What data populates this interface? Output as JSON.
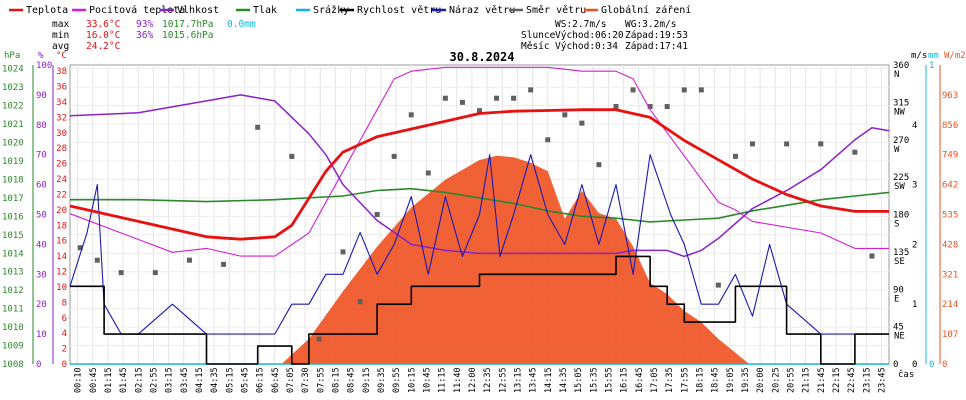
{
  "legend": [
    {
      "label": "Teplota",
      "color": "#e81010"
    },
    {
      "label": "Pocitová teplota",
      "color": "#d020d0"
    },
    {
      "label": "Vlhkost",
      "color": "#8a22c8"
    },
    {
      "label": "Tlak",
      "color": "#2a8a2a"
    },
    {
      "label": "Srážky",
      "color": "#10b8d8"
    },
    {
      "label": "Rychlost větru",
      "color": "#000000"
    },
    {
      "label": "Náraz větru",
      "color": "#1a1ab0"
    },
    {
      "label": "Směr větru",
      "color": "#606060"
    },
    {
      "label": "Globální záření",
      "color": "#f05020"
    }
  ],
  "stats": {
    "max_label": "max",
    "max_temp": "33.6°C",
    "max_hum": "93%",
    "max_press": "1017.7hPa",
    "max_rain": "0.0mm",
    "min_label": "min",
    "min_temp": "16.0°C",
    "min_hum": "36%",
    "min_press": "1015.6hPa",
    "avg_label": "avg",
    "avg_temp": "24.2°C"
  },
  "wind_info": {
    "ws": "WS:2.7m/s",
    "wg": "WG:3.2m/s"
  },
  "sun": {
    "label": "Slunce",
    "rise": "Východ:06:20",
    "set": "Západ:19:53"
  },
  "moon": {
    "label": "Měsíc",
    "rise": "Východ:0:34",
    "set": "Západ:17:41"
  },
  "axis_units": {
    "hpa": "hPa",
    "pct": "%",
    "degc": "°C",
    "ms": "m/s",
    "mm": "mm",
    "wm2": "W/m2",
    "time": "čas"
  },
  "chart_data": {
    "type": "line",
    "title": "30.8.2024",
    "pressure_ticks": [
      1024,
      1023,
      1022,
      1021,
      1020,
      1019,
      1018,
      1017,
      1016,
      1015,
      1014,
      1013,
      1012,
      1011,
      1010,
      1009,
      1008
    ],
    "humidity_ticks": [
      100,
      90,
      80,
      70,
      60,
      50,
      40,
      30,
      20,
      10,
      0
    ],
    "temp_ticks": [
      38,
      36,
      34,
      32,
      30,
      28,
      26,
      24,
      22,
      20,
      18,
      16,
      14,
      12,
      10,
      8,
      6,
      4,
      2,
      0
    ],
    "direction_ticks": [
      {
        "deg": 360,
        "label": "N"
      },
      {
        "deg": 315,
        "label": "NW"
      },
      {
        "deg": 270,
        "label": "W"
      },
      {
        "deg": 225,
        "label": "SW"
      },
      {
        "deg": 180,
        "label": "S"
      },
      {
        "deg": 135,
        "label": "SE"
      },
      {
        "deg": 90,
        "label": "E"
      },
      {
        "deg": 45,
        "label": "NE"
      },
      {
        "deg": 0,
        "label": ""
      }
    ],
    "wind_ticks": [
      4,
      3,
      2,
      1,
      0
    ],
    "rain_ticks": [
      1,
      0
    ],
    "radiation_ticks": [
      963,
      856,
      749,
      642,
      535,
      428,
      321,
      214,
      107,
      0
    ],
    "time_labels": [
      "00:10",
      "00:45",
      "01:15",
      "01:45",
      "02:15",
      "02:55",
      "03:15",
      "03:45",
      "04:15",
      "04:35",
      "05:15",
      "05:45",
      "06:15",
      "06:45",
      "07:05",
      "07:30",
      "07:55",
      "08:15",
      "08:45",
      "09:15",
      "09:35",
      "09:55",
      "10:15",
      "10:45",
      "11:15",
      "11:40",
      "12:00",
      "12:35",
      "12:55",
      "13:15",
      "13:45",
      "14:15",
      "14:35",
      "15:05",
      "15:35",
      "15:55",
      "16:15",
      "16:45",
      "17:05",
      "17:35",
      "17:55",
      "18:15",
      "18:45",
      "19:05",
      "19:35",
      "20:00",
      "20:25",
      "20:55",
      "21:15",
      "21:45",
      "22:15",
      "22:45",
      "23:15",
      "23:45"
    ],
    "series": [
      {
        "name": "Teplota",
        "unit": "°C",
        "color": "#e81010",
        "x_hours": [
          0,
          2,
          4,
          5,
          6,
          6.5,
          7,
          7.5,
          8,
          9,
          10,
          11,
          12,
          13,
          14,
          15,
          16,
          17,
          18,
          19,
          20,
          21,
          22,
          23,
          24
        ],
        "values": [
          20.5,
          18.5,
          16.5,
          16.2,
          16.5,
          18,
          21.5,
          25,
          27.5,
          29.5,
          30.5,
          31.5,
          32.5,
          32.8,
          32.9,
          33,
          33,
          32,
          29,
          26.5,
          24,
          22,
          20.5,
          19.8,
          19.8
        ]
      },
      {
        "name": "Pocitová teplota",
        "unit": "°C",
        "color": "#d020d0",
        "x_hours": [
          0,
          1.5,
          3,
          4,
          5,
          6,
          7,
          7.5,
          8,
          9,
          9.5,
          10,
          11,
          12,
          13,
          14,
          15,
          16,
          16.5,
          17,
          17.5,
          18,
          18.5,
          19,
          19.5,
          20,
          22,
          23,
          24
        ],
        "values": [
          19.5,
          17,
          14.5,
          15,
          14,
          14,
          17,
          21,
          25,
          33,
          37,
          38,
          38.5,
          38.5,
          38.5,
          38.5,
          38,
          38,
          37,
          33,
          30,
          27,
          24,
          21,
          20,
          18.5,
          17,
          15,
          15
        ]
      },
      {
        "name": "Vlhkost",
        "unit": "%",
        "color": "#8a22c8",
        "x_hours": [
          0,
          2,
          4,
          5,
          6,
          7,
          7.5,
          8,
          9,
          9.5,
          10,
          11,
          12,
          13,
          14,
          15,
          16,
          16.5,
          17,
          17.5,
          18,
          18.5,
          19,
          20,
          21,
          22,
          23,
          23.5,
          24
        ],
        "values": [
          83,
          84,
          88,
          90,
          88,
          77,
          70,
          60,
          48,
          44,
          40,
          38,
          37,
          37,
          37,
          37,
          37,
          38,
          38,
          38,
          36,
          38,
          42,
          52,
          58,
          65,
          75,
          79,
          78
        ]
      },
      {
        "name": "Tlak",
        "unit": "hPa",
        "color": "#2a8a2a",
        "x_hours": [
          0,
          2,
          4,
          6,
          8,
          9,
          10,
          11,
          12,
          13,
          14,
          15,
          16,
          17,
          18,
          19,
          20,
          21,
          22,
          23,
          24
        ],
        "values": [
          1016.9,
          1016.9,
          1016.8,
          1016.9,
          1017.1,
          1017.4,
          1017.5,
          1017.3,
          1017.0,
          1016.7,
          1016.3,
          1016.0,
          1015.9,
          1015.7,
          1015.8,
          1015.9,
          1016.3,
          1016.6,
          1016.9,
          1017.1,
          1017.3
        ]
      },
      {
        "name": "Srážky",
        "unit": "mm",
        "color": "#10b8d8",
        "x_hours": [
          0,
          24
        ],
        "values": [
          0,
          0
        ]
      },
      {
        "name": "Rychlost větru",
        "unit": "m/s",
        "color": "#000000",
        "x_hours": [
          0,
          0.5,
          1,
          1.5,
          2,
          3,
          4,
          5,
          5.5,
          6,
          6.5,
          7,
          8,
          9,
          10,
          11,
          12,
          13,
          14,
          15,
          16,
          17,
          17.5,
          18,
          19,
          19.5,
          20,
          21,
          22,
          23,
          24
        ],
        "values": [
          1.3,
          1.3,
          0.5,
          0.5,
          0.5,
          0.5,
          0,
          0,
          0.3,
          0.3,
          0,
          0.5,
          0.5,
          1,
          1.3,
          1.3,
          1.5,
          1.5,
          1.5,
          1.5,
          1.8,
          1.3,
          1,
          0.7,
          0.7,
          1.3,
          1.3,
          0.5,
          0,
          0.5,
          0.5
        ]
      },
      {
        "name": "Náraz větru",
        "unit": "m/s",
        "color": "#1a1ab0",
        "x_hours": [
          0,
          0.5,
          0.8,
          1,
          1.5,
          2,
          3,
          4,
          5,
          6,
          6.5,
          7,
          7.5,
          8,
          8.5,
          9,
          9.5,
          10,
          10.5,
          11,
          11.5,
          12,
          12.3,
          12.6,
          13,
          13.5,
          14,
          14.5,
          15,
          15.5,
          16,
          16.5,
          17,
          17.3,
          17.6,
          18,
          18.5,
          19,
          19.5,
          20,
          20.5,
          21,
          22,
          23,
          24
        ],
        "values": [
          1.3,
          2.2,
          3,
          1,
          0.5,
          0.5,
          1,
          0.5,
          0.5,
          0.5,
          1,
          1,
          1.5,
          1.5,
          2.2,
          1.5,
          2,
          2.8,
          1.5,
          2.8,
          1.8,
          2.5,
          3.5,
          1.8,
          2.5,
          3.5,
          2.5,
          2,
          3,
          2,
          3,
          1.5,
          3.5,
          3,
          2.5,
          2,
          1,
          1,
          1.5,
          0.8,
          2,
          1,
          0.5,
          0.5,
          0.5
        ]
      },
      {
        "name": "Směr větru",
        "unit": "°",
        "color": "#606060",
        "x_hours": [
          0.3,
          0.8,
          1.5,
          2.5,
          3.5,
          4.5,
          5.5,
          6.5,
          7.3,
          8,
          8.5,
          9,
          9.5,
          10,
          10.5,
          11,
          11.5,
          12,
          12.5,
          13,
          13.5,
          14,
          14.5,
          15,
          15.5,
          16,
          16.5,
          17,
          17.5,
          18,
          18.5,
          19,
          19.5,
          20,
          21,
          22,
          23,
          23.5
        ],
        "values": [
          140,
          125,
          110,
          110,
          125,
          120,
          285,
          250,
          30,
          135,
          75,
          180,
          250,
          300,
          230,
          320,
          315,
          305,
          320,
          320,
          330,
          270,
          300,
          290,
          240,
          310,
          330,
          310,
          310,
          330,
          330,
          95,
          250,
          265,
          265,
          265,
          255,
          130
        ]
      },
      {
        "name": "Globální záření",
        "unit": "W/m2",
        "color": "#f05020",
        "x_hours": [
          6.2,
          7,
          8,
          9,
          10,
          11,
          12,
          12.5,
          13,
          13.5,
          14,
          14.5,
          15,
          15.5,
          16,
          16.5,
          17,
          17.5,
          18,
          18.5,
          19,
          19.5,
          19.9
        ],
        "values": [
          0,
          90,
          260,
          420,
          560,
          660,
          730,
          745,
          740,
          720,
          690,
          520,
          620,
          540,
          520,
          420,
          290,
          250,
          190,
          150,
          90,
          40,
          0
        ]
      }
    ]
  }
}
